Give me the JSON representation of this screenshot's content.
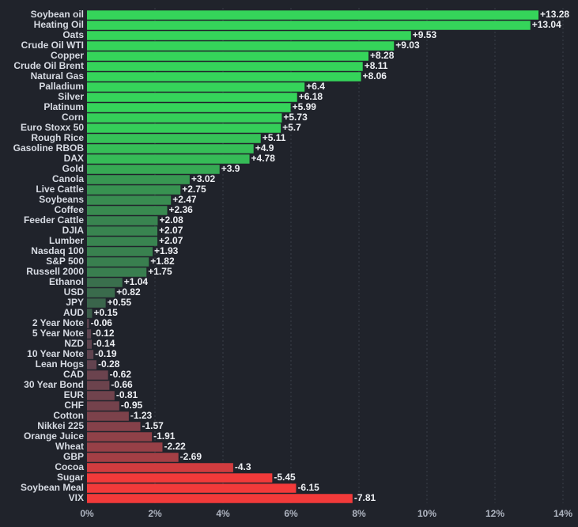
{
  "chart_data": {
    "type": "bar",
    "orientation": "horizontal",
    "title": "",
    "xlabel": "",
    "ylabel": "",
    "xlim": [
      0,
      14
    ],
    "ticks": [
      0,
      2,
      4,
      6,
      8,
      10,
      12,
      14
    ],
    "tick_labels": [
      "0%",
      "2%",
      "4%",
      "6%",
      "8%",
      "10%",
      "12%",
      "14%"
    ],
    "grid": true,
    "bar_magnitude": "absolute",
    "colors": {
      "positive_strong": "#35d45a",
      "positive_weak": "#3b5a4a",
      "negative_weak": "#5a4450",
      "negative_strong": "#f23a3a",
      "background": "#20232b"
    },
    "categories": [
      "Soybean oil",
      "Heating Oil",
      "Oats",
      "Crude Oil WTI",
      "Copper",
      "Crude Oil Brent",
      "Natural Gas",
      "Palladium",
      "Silver",
      "Platinum",
      "Corn",
      "Euro Stoxx 50",
      "Rough Rice",
      "Gasoline RBOB",
      "DAX",
      "Gold",
      "Canola",
      "Live Cattle",
      "Soybeans",
      "Coffee",
      "Feeder Cattle",
      "DJIA",
      "Lumber",
      "Nasdaq 100",
      "S&P 500",
      "Russell 2000",
      "Ethanol",
      "USD",
      "JPY",
      "AUD",
      "2 Year Note",
      "5 Year Note",
      "NZD",
      "10 Year Note",
      "Lean Hogs",
      "CAD",
      "30 Year Bond",
      "EUR",
      "CHF",
      "Cotton",
      "Nikkei 225",
      "Orange Juice",
      "Wheat",
      "GBP",
      "Cocoa",
      "Sugar",
      "Soybean Meal",
      "VIX"
    ],
    "values": [
      13.28,
      13.04,
      9.53,
      9.03,
      8.28,
      8.11,
      8.06,
      6.4,
      6.18,
      5.99,
      5.73,
      5.7,
      5.11,
      4.9,
      4.78,
      3.9,
      3.02,
      2.75,
      2.47,
      2.36,
      2.08,
      2.07,
      2.07,
      1.93,
      1.82,
      1.75,
      1.04,
      0.82,
      0.55,
      0.15,
      -0.06,
      -0.12,
      -0.14,
      -0.19,
      -0.28,
      -0.62,
      -0.66,
      -0.81,
      -0.95,
      -1.23,
      -1.57,
      -1.91,
      -2.22,
      -2.69,
      -4.3,
      -5.45,
      -6.15,
      -7.81
    ],
    "value_labels": [
      "+13.28",
      "+13.04",
      "+9.53",
      "+9.03",
      "+8.28",
      "+8.11",
      "+8.06",
      "+6.4",
      "+6.18",
      "+5.99",
      "+5.73",
      "+5.7",
      "+5.11",
      "+4.9",
      "+4.78",
      "+3.9",
      "+3.02",
      "+2.75",
      "+2.47",
      "+2.36",
      "+2.08",
      "+2.07",
      "+2.07",
      "+1.93",
      "+1.82",
      "+1.75",
      "+1.04",
      "+0.82",
      "+0.55",
      "+0.15",
      "-0.06",
      "-0.12",
      "-0.14",
      "-0.19",
      "-0.28",
      "-0.62",
      "-0.66",
      "-0.81",
      "-0.95",
      "-1.23",
      "-1.57",
      "-1.91",
      "-2.22",
      "-2.69",
      "-4.3",
      "-5.45",
      "-6.15",
      "-7.81"
    ]
  }
}
